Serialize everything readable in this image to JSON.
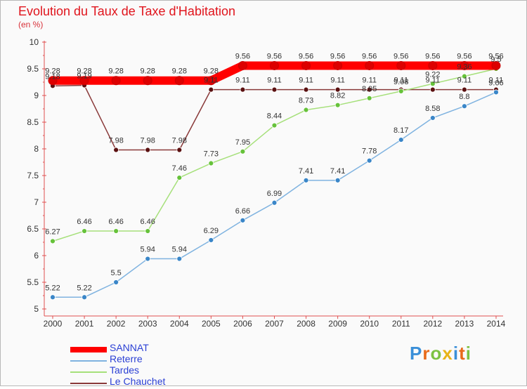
{
  "page": {
    "title": "Evolution du Taux de Taxe d'Habitation",
    "subtitle": "(en %)"
  },
  "logo": {
    "letters": [
      "P",
      "r",
      "o",
      "x",
      "i",
      "t",
      "i"
    ],
    "colors": [
      "#3a8fd8",
      "#e86a1a",
      "#7cc242",
      "#e8b418",
      "#3a8fd8",
      "#e86a1a",
      "#7cc242"
    ]
  },
  "chart_data": {
    "type": "line",
    "title": "Evolution du Taux de Taxe d'Habitation",
    "ylabel": "(en %)",
    "xlabel": "",
    "x": [
      "2000",
      "2001",
      "2002",
      "2003",
      "2004",
      "2005",
      "2006",
      "2007",
      "2008",
      "2009",
      "2010",
      "2011",
      "2012",
      "2013",
      "2014"
    ],
    "ylim": [
      5,
      10
    ],
    "yticks": [
      "5",
      "5.5",
      "6",
      "6.5",
      "7",
      "7.5",
      "8",
      "8.5",
      "9",
      "9.5",
      "10"
    ],
    "grid": false,
    "legend_position": "bottom-left",
    "series": [
      {
        "name": "SANNAT",
        "color": "#ff0000",
        "marker_color": "#dd0000",
        "thick": true,
        "values": [
          9.28,
          9.28,
          9.28,
          9.28,
          9.28,
          9.28,
          9.56,
          9.56,
          9.56,
          9.56,
          9.56,
          9.56,
          9.56,
          9.56,
          9.56
        ],
        "labels": [
          "9.28",
          "9.28",
          "9.28",
          "9.28",
          "9.28",
          "9.28",
          "9.56",
          "9.56",
          "9.56",
          "9.56",
          "9.56",
          "9.56",
          "9.56",
          "9.56",
          "9.56"
        ]
      },
      {
        "name": "Reterre",
        "color": "#7fb3e0",
        "marker_color": "#3a86c8",
        "thick": false,
        "values": [
          5.22,
          5.22,
          5.5,
          5.94,
          5.94,
          6.29,
          6.66,
          6.99,
          7.41,
          7.41,
          7.78,
          8.17,
          8.58,
          8.8,
          9.06
        ],
        "labels": [
          "5.22",
          "5.22",
          "5.5",
          "5.94",
          "5.94",
          "6.29",
          "6.66",
          "6.99",
          "7.41",
          "7.41",
          "7.78",
          "8.17",
          "8.58",
          "8.8",
          "9.06"
        ]
      },
      {
        "name": "Tardes",
        "color": "#a6e07a",
        "marker_color": "#66c23a",
        "thick": false,
        "values": [
          6.27,
          6.46,
          6.46,
          6.46,
          7.46,
          7.73,
          7.95,
          8.44,
          8.73,
          8.82,
          8.95,
          9.08,
          9.22,
          9.36,
          9.5
        ],
        "labels": [
          "6.27",
          "6.46",
          "6.46",
          "6.46",
          "7.46",
          "7.73",
          "7.95",
          "8.44",
          "8.73",
          "8.82",
          "8.95",
          "9.08",
          "9.22",
          "9.36",
          "9.5"
        ]
      },
      {
        "name": "Le Chauchet",
        "color": "#8a3a3a",
        "marker_color": "#5a1010",
        "thick": false,
        "values": [
          9.18,
          9.19,
          7.98,
          7.98,
          7.98,
          9.11,
          9.11,
          9.11,
          9.11,
          9.11,
          9.11,
          9.11,
          9.11,
          9.11,
          9.11
        ],
        "labels": [
          "9.18",
          "9.19",
          "7.98",
          "7.98",
          "7.98",
          "9.11",
          "9.11",
          "9.11",
          "9.11",
          "9.11",
          "9.11",
          "9.11",
          "9.11",
          "9.11",
          "9.11"
        ]
      }
    ]
  }
}
